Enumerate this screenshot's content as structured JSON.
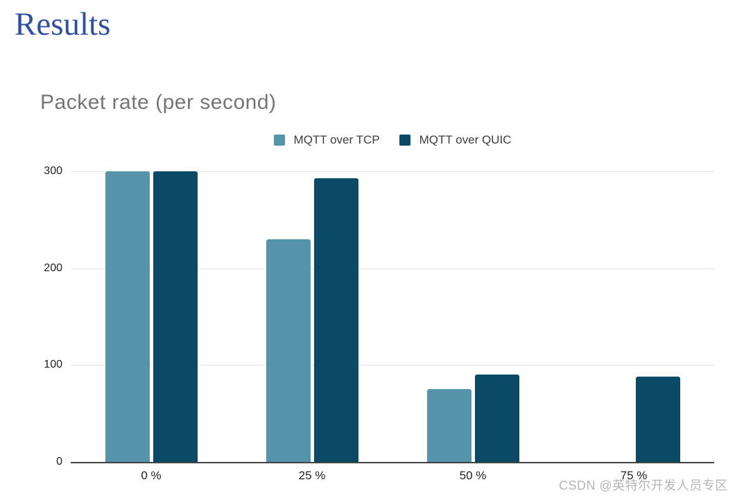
{
  "slide": {
    "title": "Results"
  },
  "chart_data": {
    "type": "bar",
    "title": "Packet rate (per second)",
    "categories": [
      "0 %",
      "25 %",
      "50 %",
      "75 %"
    ],
    "series": [
      {
        "name": "MQTT over TCP",
        "color": "#5694ab",
        "values": [
          300,
          230,
          75,
          0
        ]
      },
      {
        "name": "MQTT over QUIC",
        "color": "#0a4a66",
        "values": [
          300,
          293,
          90,
          88
        ]
      }
    ],
    "xlabel": "",
    "ylabel": "",
    "ylim": [
      0,
      300
    ],
    "yticks": [
      0,
      100,
      200,
      300
    ],
    "grid": true,
    "legend_position": "top-center"
  },
  "watermark": {
    "text": "CSDN @英特尔开发人员专区"
  },
  "colors": {
    "slide_title": "#2f4f9f",
    "chart_title": "#757575",
    "tcp_bar": "#5694ab",
    "quic_bar": "#0a4a66",
    "gridline": "#e3e3e3",
    "axis_line": "#424242",
    "tick_label": "#202124",
    "legend_text": "#3c3c3c",
    "watermark_text": "#b5b5b5"
  }
}
